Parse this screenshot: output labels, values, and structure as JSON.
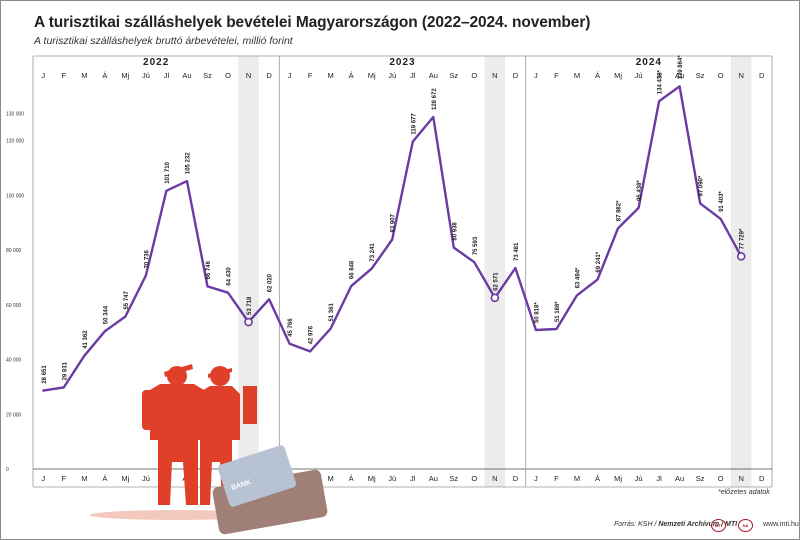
{
  "title": "A turisztikai szálláshelyek bevételei Magyarországon (2022–2024. november)",
  "subtitle": "A turisztikai szálláshelyek bruttó árbevételei, millió forint",
  "footnote": "*előzetes adatok",
  "footer": {
    "source_prefix": "Forrás: KSH / ",
    "source_bold": "Nemzeti Archívum / MTI",
    "logo1": "MTI",
    "logo2": "NA",
    "url": "www.mti.hu"
  },
  "colors": {
    "line": "#6a3ba1",
    "highlight": "#ececec",
    "illustration": "#e0402a"
  },
  "illustration": {
    "icon": "tourists-with-bank-card-illustration",
    "card_text": "BANK"
  },
  "chart_data": {
    "type": "line",
    "years": [
      "2022",
      "2023",
      "2024"
    ],
    "months": [
      "J",
      "F",
      "M",
      "Á",
      "Mj",
      "Jú",
      "Jl",
      "Au",
      "Sz",
      "O",
      "N",
      "D"
    ],
    "x": [
      "2022-01",
      "2022-02",
      "2022-03",
      "2022-04",
      "2022-05",
      "2022-06",
      "2022-07",
      "2022-08",
      "2022-09",
      "2022-10",
      "2022-11",
      "2022-12",
      "2023-01",
      "2023-02",
      "2023-03",
      "2023-04",
      "2023-05",
      "2023-06",
      "2023-07",
      "2023-08",
      "2023-09",
      "2023-10",
      "2023-11",
      "2023-12",
      "2024-01",
      "2024-02",
      "2024-03",
      "2024-04",
      "2024-05",
      "2024-06",
      "2024-07",
      "2024-08",
      "2024-09",
      "2024-10",
      "2024-11"
    ],
    "values": [
      28651,
      29831,
      41362,
      50344,
      55747,
      70736,
      101710,
      105232,
      66746,
      64430,
      53718,
      62020,
      45766,
      42976,
      51361,
      66848,
      73241,
      83907,
      119677,
      128672,
      80938,
      75593,
      62571,
      73481,
      50818,
      51186,
      63494,
      69241,
      87982,
      95438,
      134439,
      139864,
      97090,
      91403,
      77729
    ],
    "labels": [
      "28 651",
      "29 831",
      "41 362",
      "50 344",
      "55 747",
      "70 736",
      "101 710",
      "105 232",
      "66 746",
      "64 430",
      "53 718",
      "62 020",
      "45 766",
      "42 976",
      "51 361",
      "66 848",
      "73 241",
      "83 907",
      "119 677",
      "128 672",
      "80 938",
      "75 593",
      "62 571",
      "73 481",
      "50 818*",
      "51 186*",
      "63 494*",
      "69 241*",
      "87 982*",
      "95 438*",
      "134 439*",
      "139 864*",
      "97 090*",
      "91 403*",
      "77 729*"
    ],
    "highlighted_months": [
      "2022-11",
      "2023-11",
      "2024-11"
    ],
    "ylim": [
      0,
      140000
    ],
    "yticks": [
      0,
      20000,
      40000,
      60000,
      80000,
      100000,
      120000,
      130000
    ],
    "ytick_labels": [
      "0",
      "20 000",
      "40 000",
      "60 000",
      "80 000",
      "100 000",
      "120 000",
      "130 000"
    ],
    "grid": false,
    "xlabel": "",
    "ylabel": ""
  }
}
